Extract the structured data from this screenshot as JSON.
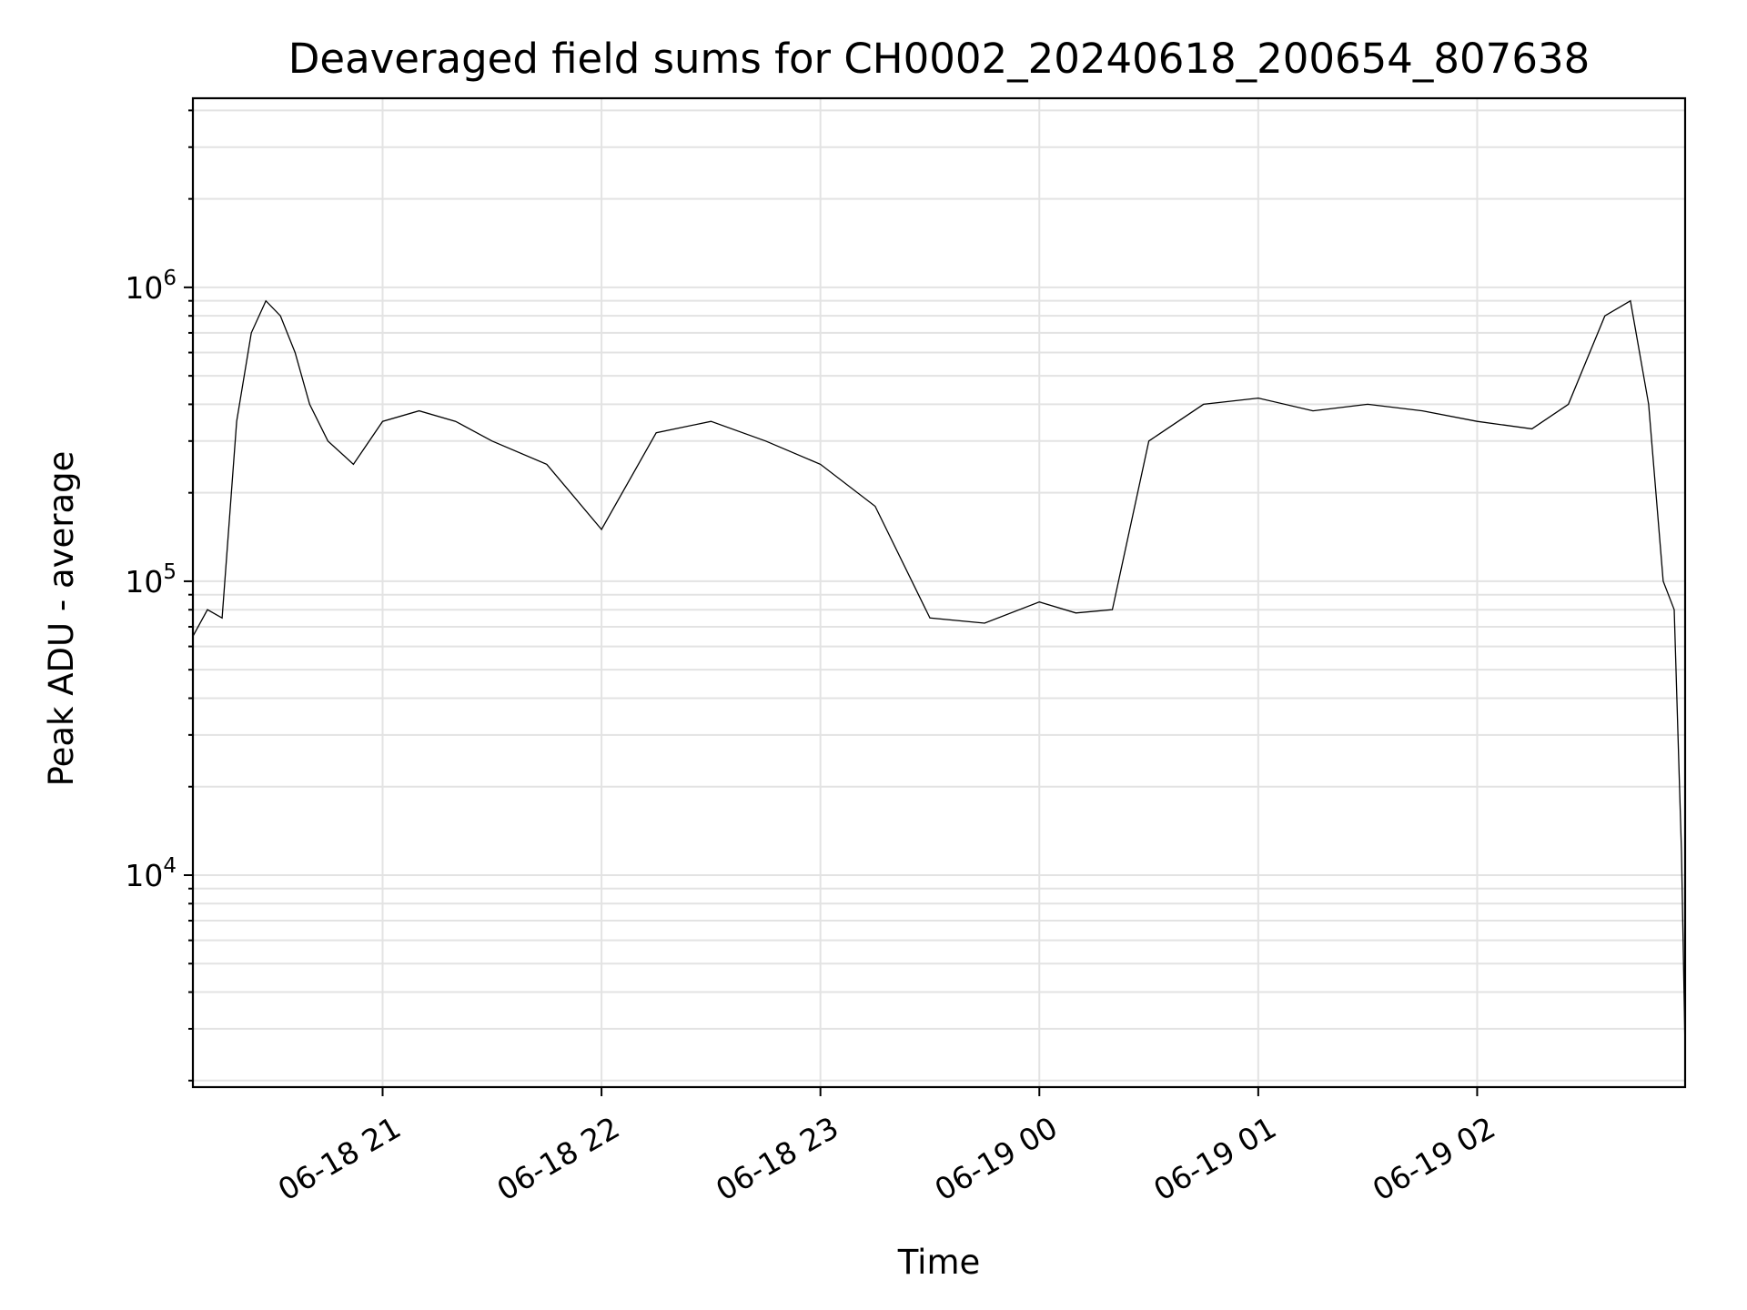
{
  "chart_data": {
    "type": "line",
    "title": "Deaveraged field sums for CH0002_20240618_200654_807638",
    "xlabel": "Time",
    "ylabel": "Peak ADU - average",
    "yscale": "log",
    "xlim": [
      "2024-06-18T20:08",
      "2024-06-19T02:57"
    ],
    "ylim": [
      1900,
      4400000
    ],
    "grid": true,
    "x_ticks": [
      {
        "value": "2024-06-18T21:00",
        "label": "06-18 21"
      },
      {
        "value": "2024-06-18T22:00",
        "label": "06-18 22"
      },
      {
        "value": "2024-06-18T23:00",
        "label": "06-18 23"
      },
      {
        "value": "2024-06-19T00:00",
        "label": "06-19 00"
      },
      {
        "value": "2024-06-19T01:00",
        "label": "06-19 01"
      },
      {
        "value": "2024-06-19T02:00",
        "label": "06-19 02"
      }
    ],
    "y_ticks": [
      {
        "value": 10000,
        "base": "10",
        "exp": "4"
      },
      {
        "value": 100000,
        "base": "10",
        "exp": "5"
      },
      {
        "value": 1000000,
        "base": "10",
        "exp": "6"
      }
    ],
    "series_color": "#000000",
    "series": [
      {
        "x": [
          "2024-06-18T20:08",
          "2024-06-18T20:12",
          "2024-06-18T20:16",
          "2024-06-18T20:20",
          "2024-06-18T20:24",
          "2024-06-18T20:28",
          "2024-06-18T20:32",
          "2024-06-18T20:36",
          "2024-06-18T20:40",
          "2024-06-18T20:45",
          "2024-06-18T20:52",
          "2024-06-18T21:00",
          "2024-06-18T21:10",
          "2024-06-18T21:20",
          "2024-06-18T21:30",
          "2024-06-18T21:45",
          "2024-06-18T22:00",
          "2024-06-18T22:15",
          "2024-06-18T22:30",
          "2024-06-18T22:45",
          "2024-06-18T23:00",
          "2024-06-18T23:15",
          "2024-06-18T23:30",
          "2024-06-18T23:45",
          "2024-06-19T00:00",
          "2024-06-19T00:10",
          "2024-06-19T00:20",
          "2024-06-19T00:30",
          "2024-06-19T00:45",
          "2024-06-19T01:00",
          "2024-06-19T01:15",
          "2024-06-19T01:30",
          "2024-06-19T01:45",
          "2024-06-19T02:00",
          "2024-06-19T02:15",
          "2024-06-19T02:25",
          "2024-06-19T02:35",
          "2024-06-19T02:42",
          "2024-06-19T02:47",
          "2024-06-19T02:51",
          "2024-06-19T02:54",
          "2024-06-19T02:56",
          "2024-06-19T02:57"
        ],
        "y": [
          65000,
          80000,
          75000,
          350000,
          700000,
          900000,
          800000,
          600000,
          400000,
          300000,
          250000,
          350000,
          380000,
          350000,
          300000,
          250000,
          150000,
          320000,
          350000,
          300000,
          250000,
          180000,
          75000,
          72000,
          85000,
          78000,
          80000,
          300000,
          400000,
          420000,
          380000,
          400000,
          380000,
          350000,
          330000,
          400000,
          800000,
          900000,
          400000,
          100000,
          80000,
          12000,
          2500
        ]
      }
    ]
  }
}
